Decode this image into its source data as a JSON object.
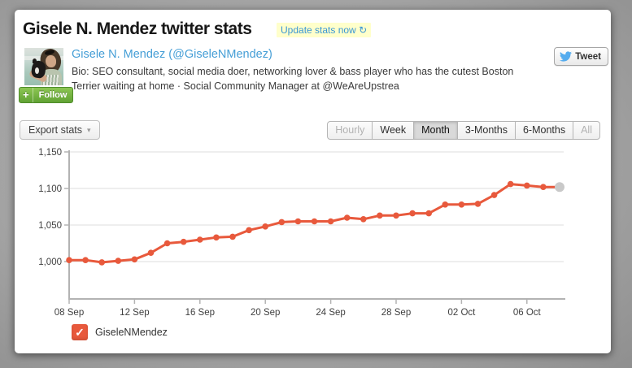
{
  "header": {
    "title": "Gisele N. Mendez twitter stats",
    "update_label": "Update stats now",
    "refresh_icon": "↻"
  },
  "profile": {
    "name_link": "Gisele N. Mendez (@GiseleNMendez)",
    "bio_line1": "Bio: SEO consultant, social media doer, networking lover & bass player who has the cutest Boston",
    "bio_line2": "Terrier waiting at home · Social Community Manager at @WeAreUpstrea",
    "follow_plus": "+",
    "follow_label": "Follow",
    "tweet_label": "Tweet"
  },
  "toolbar": {
    "export_label": "Export stats",
    "export_caret": "▾",
    "tabs": [
      {
        "label": "Hourly",
        "state": "disabled"
      },
      {
        "label": "Week",
        "state": "normal"
      },
      {
        "label": "Month",
        "state": "selected"
      },
      {
        "label": "3-Months",
        "state": "normal"
      },
      {
        "label": "6-Months",
        "state": "normal"
      },
      {
        "label": "All",
        "state": "disabled"
      }
    ]
  },
  "legend": {
    "label": "GiseleNMendez",
    "checked": true,
    "check_glyph": "✓"
  },
  "colors": {
    "line": "#e8593c",
    "last_point": "#c9c9c9",
    "grid": "#e3e3e3",
    "axis": "#b3b3b3",
    "link_blue": "#459ed6",
    "update_bg": "#ffffcb",
    "follow_green": "#61a234",
    "twitter_blue": "#55acee"
  },
  "chart_data": {
    "type": "line",
    "title": "",
    "xlabel": "",
    "ylabel": "",
    "grid": true,
    "legend_position": "bottom-left",
    "ylim": [
      950,
      1160
    ],
    "yticks": [
      {
        "value": 1000,
        "label": "1,000"
      },
      {
        "value": 1050,
        "label": "1,050"
      },
      {
        "value": 1100,
        "label": "1,100"
      },
      {
        "value": 1150,
        "label": "1,150"
      }
    ],
    "xticks": [
      "08 Sep",
      "12 Sep",
      "16 Sep",
      "20 Sep",
      "24 Sep",
      "28 Sep",
      "02 Oct",
      "06 Oct"
    ],
    "xtick_indices": [
      0,
      4,
      8,
      12,
      16,
      20,
      24,
      28
    ],
    "x": [
      "08 Sep",
      "09 Sep",
      "10 Sep",
      "11 Sep",
      "12 Sep",
      "13 Sep",
      "14 Sep",
      "15 Sep",
      "16 Sep",
      "17 Sep",
      "18 Sep",
      "19 Sep",
      "20 Sep",
      "21 Sep",
      "22 Sep",
      "23 Sep",
      "24 Sep",
      "25 Sep",
      "26 Sep",
      "27 Sep",
      "28 Sep",
      "29 Sep",
      "30 Sep",
      "01 Oct",
      "02 Oct",
      "03 Oct",
      "04 Oct",
      "05 Oct",
      "06 Oct",
      "07 Oct",
      "08 Oct"
    ],
    "series": [
      {
        "name": "GiseleNMendez",
        "color": "#e8593c",
        "values": [
          1002,
          1002,
          999,
          1001,
          1003,
          1012,
          1025,
          1027,
          1030,
          1033,
          1034,
          1043,
          1048,
          1054,
          1055,
          1055,
          1055,
          1060,
          1058,
          1063,
          1063,
          1066,
          1066,
          1078,
          1078,
          1079,
          1091,
          1106,
          1104,
          1102,
          1102
        ],
        "last_point_is_current": true,
        "last_point_color": "#c9c9c9"
      }
    ]
  }
}
